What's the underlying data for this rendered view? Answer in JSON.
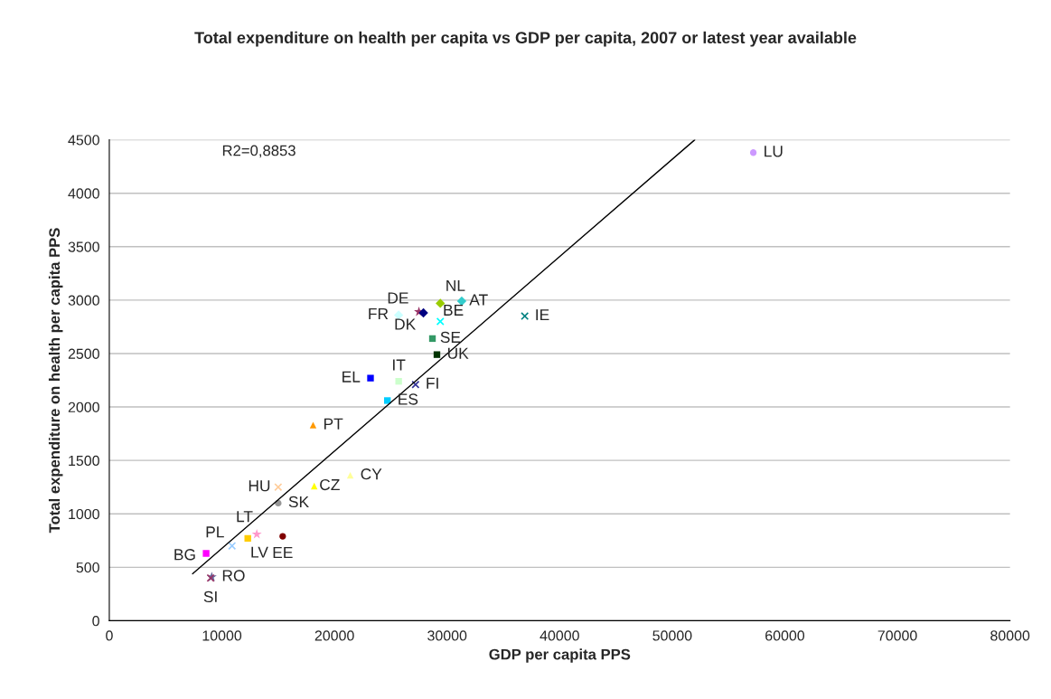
{
  "chart_data": {
    "type": "scatter",
    "title": "Total expenditure on health per capita vs GDP per capita, 2007 or latest year available",
    "xlabel": "GDP per capita PPS",
    "ylabel": "Total expenditure on health per capita PPS",
    "xlim": [
      0,
      80000
    ],
    "xticks": [
      0,
      10000,
      20000,
      30000,
      40000,
      50000,
      60000,
      70000,
      80000
    ],
    "ylim": [
      0,
      4500
    ],
    "yticks": [
      0,
      500,
      1000,
      1500,
      2000,
      2500,
      3000,
      3500,
      4000,
      4500
    ],
    "grid": "y",
    "legend": false,
    "annotations": [
      "R2=0,8853"
    ],
    "series": [
      {
        "name": "LU",
        "color": "#cc99ff",
        "marker": "circle",
        "x": [
          57200
        ],
        "values": [
          4380
        ]
      },
      {
        "name": "IE",
        "color": "#008080",
        "marker": "cross",
        "x": [
          36900
        ],
        "values": [
          2850
        ]
      },
      {
        "name": "AT",
        "color": "#33cccc",
        "marker": "diamond",
        "x": [
          31300
        ],
        "values": [
          2990
        ]
      },
      {
        "name": "NL",
        "color": "#99cc00",
        "marker": "diamond",
        "x": [
          29400
        ],
        "values": [
          2970
        ]
      },
      {
        "name": "DE",
        "color": "#993366",
        "marker": "star",
        "x": [
          27500
        ],
        "values": [
          2890
        ]
      },
      {
        "name": "DK",
        "color": "#000080",
        "marker": "diamond",
        "x": [
          27900
        ],
        "values": [
          2880
        ]
      },
      {
        "name": "BE",
        "color": "#00ffff",
        "marker": "cross",
        "x": [
          29400
        ],
        "values": [
          2800
        ]
      },
      {
        "name": "FR",
        "color": "#ccffff",
        "marker": "diamond",
        "x": [
          25700
        ],
        "values": [
          2860
        ]
      },
      {
        "name": "SE",
        "color": "#339966",
        "marker": "square",
        "x": [
          28700
        ],
        "values": [
          2640
        ]
      },
      {
        "name": "UK",
        "color": "#003300",
        "marker": "square",
        "x": [
          29100
        ],
        "values": [
          2490
        ]
      },
      {
        "name": "IT",
        "color": "#ccffcc",
        "marker": "square",
        "x": [
          25700
        ],
        "values": [
          2240
        ]
      },
      {
        "name": "EL",
        "color": "#0000ff",
        "marker": "square",
        "x": [
          23200
        ],
        "values": [
          2270
        ]
      },
      {
        "name": "FI",
        "color": "#333399",
        "marker": "cross",
        "x": [
          27200
        ],
        "values": [
          2210
        ]
      },
      {
        "name": "ES",
        "color": "#00ccff",
        "marker": "square",
        "x": [
          24700
        ],
        "values": [
          2060
        ]
      },
      {
        "name": "PT",
        "color": "#ff9900",
        "marker": "triangle",
        "x": [
          18100
        ],
        "values": [
          1830
        ]
      },
      {
        "name": "CY",
        "color": "#ffff99",
        "marker": "triangle",
        "x": [
          21400
        ],
        "values": [
          1360
        ]
      },
      {
        "name": "CZ",
        "color": "#ffff00",
        "marker": "triangle",
        "x": [
          18200
        ],
        "values": [
          1260
        ]
      },
      {
        "name": "HU",
        "color": "#ffcc99",
        "marker": "cross",
        "x": [
          15000
        ],
        "values": [
          1250
        ]
      },
      {
        "name": "SK",
        "color": "#969696",
        "marker": "circle",
        "x": [
          15000
        ],
        "values": [
          1100
        ]
      },
      {
        "name": "LT",
        "color": "#ff99cc",
        "marker": "star",
        "x": [
          13100
        ],
        "values": [
          810
        ]
      },
      {
        "name": "EE",
        "color": "#800000",
        "marker": "circle",
        "x": [
          15400
        ],
        "values": [
          790
        ]
      },
      {
        "name": "LV",
        "color": "#ffcc00",
        "marker": "square",
        "x": [
          12300
        ],
        "values": [
          770
        ]
      },
      {
        "name": "PL",
        "color": "#99ccff",
        "marker": "cross",
        "x": [
          10900
        ],
        "values": [
          700
        ]
      },
      {
        "name": "BG",
        "color": "#ff00ff",
        "marker": "square",
        "x": [
          8600
        ],
        "values": [
          630
        ]
      },
      {
        "name": "RO",
        "color": "#666699",
        "marker": "star",
        "x": [
          9100
        ],
        "values": [
          410
        ]
      },
      {
        "name": "SI",
        "color": "#993366",
        "marker": "cross",
        "x": [
          9000
        ],
        "values": [
          400
        ]
      },
      {
        "type": "line",
        "color": "#000000",
        "marker": "none",
        "x": [
          7400,
          52000
        ],
        "values": [
          440,
          4500
        ]
      }
    ]
  }
}
